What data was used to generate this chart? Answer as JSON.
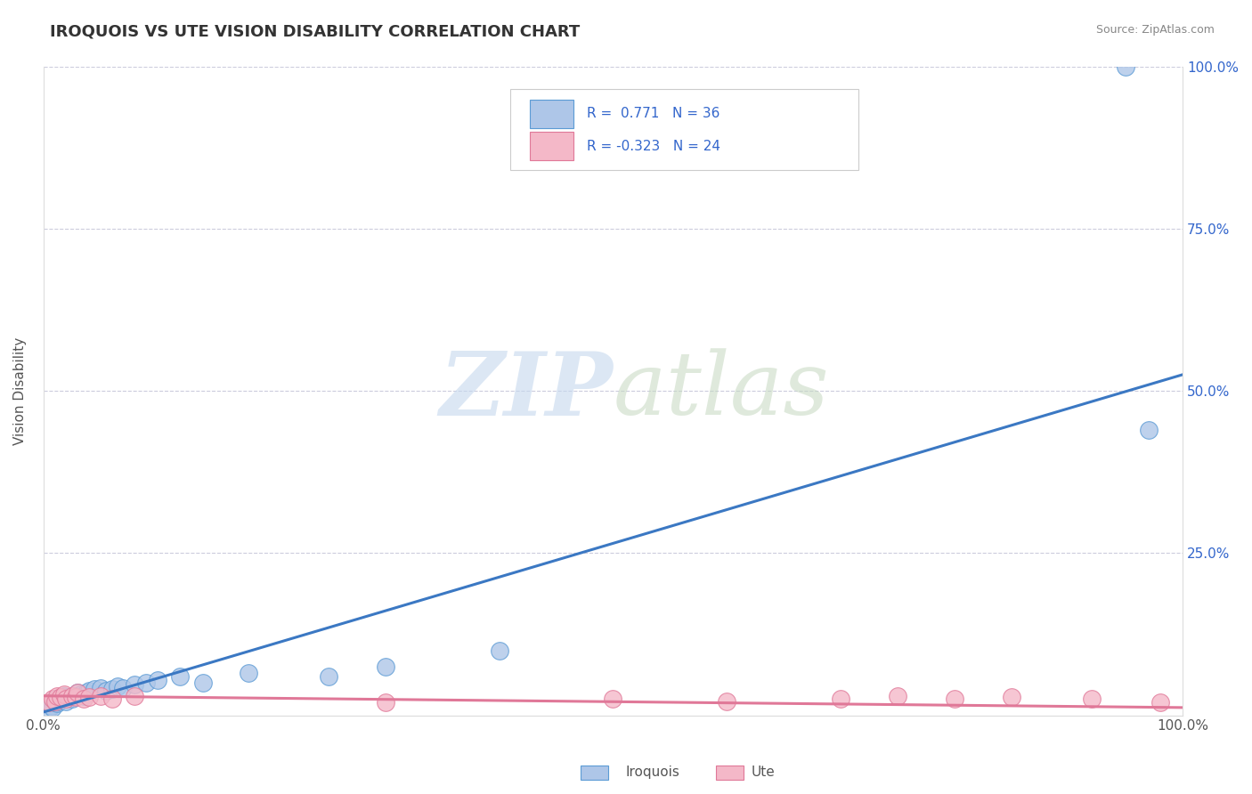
{
  "title": "IROQUOIS VS UTE VISION DISABILITY CORRELATION CHART",
  "source": "Source: ZipAtlas.com",
  "ylabel": "Vision Disability",
  "xlim": [
    0,
    1
  ],
  "ylim": [
    0,
    1
  ],
  "iroquois_color": "#aec6e8",
  "iroquois_edge": "#5b9bd5",
  "ute_color": "#f4b8c8",
  "ute_edge": "#e07898",
  "trend_iroquois_color": "#3b78c3",
  "trend_ute_color": "#e07898",
  "grid_color": "#ccccdd",
  "background_color": "#ffffff",
  "legend_color": "#3366cc",
  "title_color": "#333333",
  "ylabel_color": "#555555",
  "tick_color": "#555555",
  "right_tick_color": "#3366cc",
  "source_color": "#888888",
  "iroquois_x": [
    0.005,
    0.007,
    0.008,
    0.01,
    0.01,
    0.012,
    0.013,
    0.015,
    0.016,
    0.018,
    0.02,
    0.022,
    0.025,
    0.028,
    0.03,
    0.033,
    0.035,
    0.038,
    0.04,
    0.045,
    0.05,
    0.055,
    0.06,
    0.065,
    0.07,
    0.08,
    0.09,
    0.1,
    0.12,
    0.14,
    0.18,
    0.25,
    0.3,
    0.4,
    0.95,
    0.97
  ],
  "iroquois_y": [
    0.01,
    0.015,
    0.012,
    0.02,
    0.025,
    0.018,
    0.022,
    0.025,
    0.028,
    0.03,
    0.022,
    0.028,
    0.025,
    0.03,
    0.035,
    0.032,
    0.03,
    0.035,
    0.038,
    0.04,
    0.042,
    0.038,
    0.04,
    0.045,
    0.042,
    0.048,
    0.05,
    0.055,
    0.06,
    0.05,
    0.065,
    0.06,
    0.075,
    0.1,
    1.0,
    0.44
  ],
  "ute_x": [
    0.005,
    0.008,
    0.01,
    0.012,
    0.015,
    0.018,
    0.02,
    0.025,
    0.028,
    0.03,
    0.035,
    0.04,
    0.05,
    0.06,
    0.08,
    0.3,
    0.5,
    0.6,
    0.7,
    0.75,
    0.8,
    0.85,
    0.92,
    0.98
  ],
  "ute_y": [
    0.02,
    0.025,
    0.022,
    0.03,
    0.028,
    0.032,
    0.025,
    0.03,
    0.028,
    0.035,
    0.025,
    0.028,
    0.03,
    0.025,
    0.03,
    0.02,
    0.025,
    0.022,
    0.025,
    0.03,
    0.025,
    0.028,
    0.025,
    0.02
  ],
  "trend_iroquois_x0": 0.0,
  "trend_iroquois_y0": 0.005,
  "trend_iroquois_x1": 1.0,
  "trend_iroquois_y1": 0.525,
  "trend_ute_x0": 0.0,
  "trend_ute_y0": 0.03,
  "trend_ute_x1": 1.0,
  "trend_ute_y1": 0.012
}
